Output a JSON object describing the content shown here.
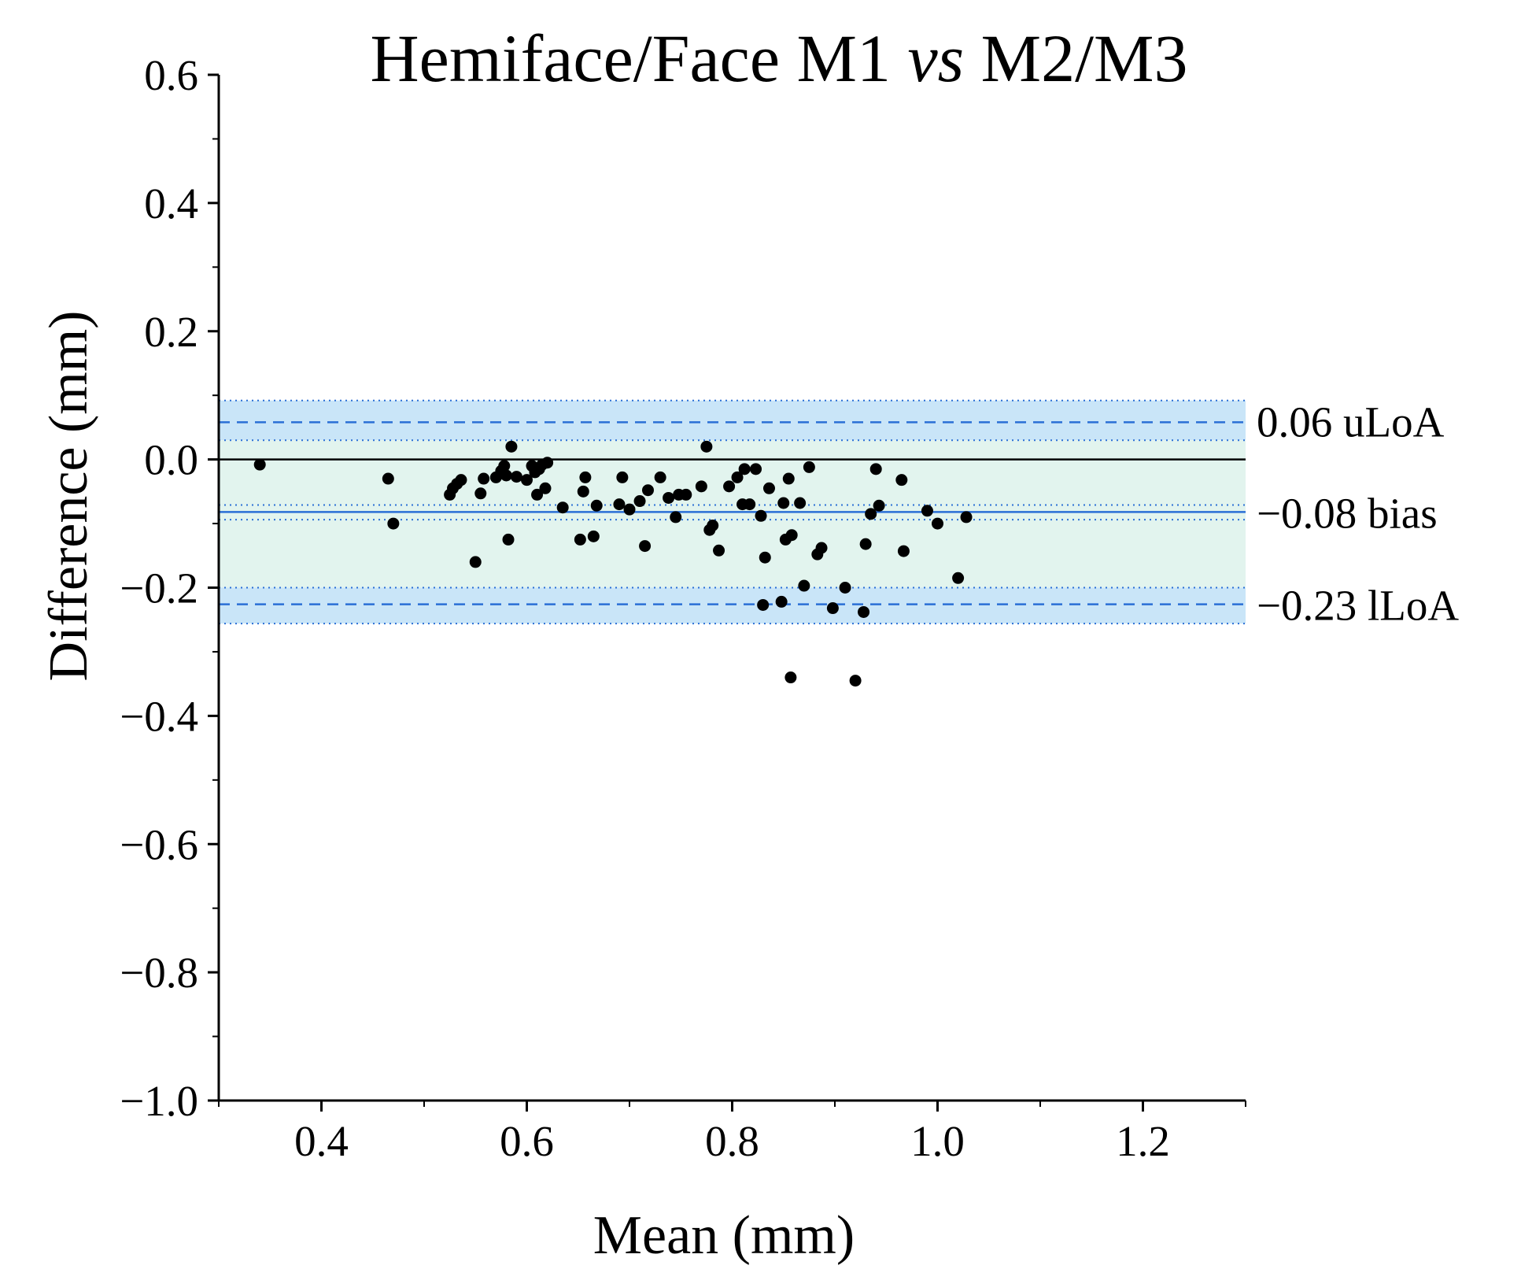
{
  "chart_data": {
    "type": "scatter",
    "subtype": "bland-altman",
    "title_main": "Hemiface/Face M1 ",
    "title_italic": "vs",
    "title_tail": " M2/M3",
    "xlabel": "Mean (mm)",
    "ylabel": "Difference (mm)",
    "xlim": [
      0.3,
      1.3
    ],
    "ylim": [
      -1.0,
      0.6
    ],
    "xticks": [
      0.4,
      0.6,
      0.8,
      1.0,
      1.2
    ],
    "xtick_labels": [
      "0.4",
      "0.6",
      "0.8",
      "1.0",
      "1.2"
    ],
    "yticks": [
      0.6,
      0.4,
      0.2,
      0.0,
      -0.2,
      -0.4,
      -0.6,
      -0.8,
      -1.0
    ],
    "ytick_labels": [
      "0.6",
      "0.4",
      "0.2",
      "0.0",
      "−0.2",
      "−0.4",
      "−0.6",
      "−0.8",
      "−1.0"
    ],
    "reference_lines": {
      "zero": 0.0,
      "bias": -0.082,
      "bias_ci": [
        -0.071,
        -0.094
      ],
      "upper_loa": 0.058,
      "upper_loa_ci": [
        0.092,
        0.03
      ],
      "lower_loa": -0.226,
      "lower_loa_ci": [
        -0.2,
        -0.256
      ]
    },
    "line_labels": {
      "upper": "0.06 uLoA",
      "bias": "−0.08 bias",
      "lower": "−0.23 lLoA"
    },
    "colors": {
      "points": "#000000",
      "lines": "#2a6fd6",
      "loa_band": "#bfe0f7",
      "inner_band": "#dff3ec",
      "zero_line": "#000000"
    },
    "points": [
      {
        "x": 0.34,
        "y": -0.008
      },
      {
        "x": 0.465,
        "y": -0.03
      },
      {
        "x": 0.47,
        "y": -0.1
      },
      {
        "x": 0.525,
        "y": -0.055
      },
      {
        "x": 0.528,
        "y": -0.045
      },
      {
        "x": 0.532,
        "y": -0.038
      },
      {
        "x": 0.536,
        "y": -0.032
      },
      {
        "x": 0.55,
        "y": -0.16
      },
      {
        "x": 0.555,
        "y": -0.053
      },
      {
        "x": 0.558,
        "y": -0.03
      },
      {
        "x": 0.57,
        "y": -0.028
      },
      {
        "x": 0.575,
        "y": -0.018
      },
      {
        "x": 0.578,
        "y": -0.01
      },
      {
        "x": 0.58,
        "y": -0.025
      },
      {
        "x": 0.582,
        "y": -0.125
      },
      {
        "x": 0.585,
        "y": 0.02
      },
      {
        "x": 0.59,
        "y": -0.027
      },
      {
        "x": 0.6,
        "y": -0.032
      },
      {
        "x": 0.605,
        "y": -0.01
      },
      {
        "x": 0.608,
        "y": -0.02
      },
      {
        "x": 0.61,
        "y": -0.055
      },
      {
        "x": 0.612,
        "y": -0.015
      },
      {
        "x": 0.615,
        "y": -0.008
      },
      {
        "x": 0.618,
        "y": -0.045
      },
      {
        "x": 0.62,
        "y": -0.005
      },
      {
        "x": 0.635,
        "y": -0.075
      },
      {
        "x": 0.652,
        "y": -0.125
      },
      {
        "x": 0.655,
        "y": -0.05
      },
      {
        "x": 0.657,
        "y": -0.028
      },
      {
        "x": 0.665,
        "y": -0.12
      },
      {
        "x": 0.668,
        "y": -0.072
      },
      {
        "x": 0.69,
        "y": -0.07
      },
      {
        "x": 0.693,
        "y": -0.028
      },
      {
        "x": 0.7,
        "y": -0.078
      },
      {
        "x": 0.71,
        "y": -0.065
      },
      {
        "x": 0.715,
        "y": -0.135
      },
      {
        "x": 0.718,
        "y": -0.048
      },
      {
        "x": 0.73,
        "y": -0.028
      },
      {
        "x": 0.738,
        "y": -0.06
      },
      {
        "x": 0.745,
        "y": -0.09
      },
      {
        "x": 0.748,
        "y": -0.055
      },
      {
        "x": 0.755,
        "y": -0.055
      },
      {
        "x": 0.77,
        "y": -0.042
      },
      {
        "x": 0.775,
        "y": 0.02
      },
      {
        "x": 0.778,
        "y": -0.11
      },
      {
        "x": 0.781,
        "y": -0.103
      },
      {
        "x": 0.787,
        "y": -0.142
      },
      {
        "x": 0.797,
        "y": -0.042
      },
      {
        "x": 0.805,
        "y": -0.028
      },
      {
        "x": 0.81,
        "y": -0.07
      },
      {
        "x": 0.812,
        "y": -0.015
      },
      {
        "x": 0.817,
        "y": -0.07
      },
      {
        "x": 0.823,
        "y": -0.015
      },
      {
        "x": 0.828,
        "y": -0.088
      },
      {
        "x": 0.83,
        "y": -0.227
      },
      {
        "x": 0.832,
        "y": -0.153
      },
      {
        "x": 0.836,
        "y": -0.045
      },
      {
        "x": 0.848,
        "y": -0.222
      },
      {
        "x": 0.85,
        "y": -0.068
      },
      {
        "x": 0.852,
        "y": -0.125
      },
      {
        "x": 0.855,
        "y": -0.03
      },
      {
        "x": 0.857,
        "y": -0.34
      },
      {
        "x": 0.858,
        "y": -0.118
      },
      {
        "x": 0.866,
        "y": -0.068
      },
      {
        "x": 0.87,
        "y": -0.197
      },
      {
        "x": 0.875,
        "y": -0.012
      },
      {
        "x": 0.883,
        "y": -0.148
      },
      {
        "x": 0.887,
        "y": -0.138
      },
      {
        "x": 0.898,
        "y": -0.232
      },
      {
        "x": 0.91,
        "y": -0.2
      },
      {
        "x": 0.92,
        "y": -0.345
      },
      {
        "x": 0.928,
        "y": -0.238
      },
      {
        "x": 0.93,
        "y": -0.132
      },
      {
        "x": 0.935,
        "y": -0.085
      },
      {
        "x": 0.94,
        "y": -0.015
      },
      {
        "x": 0.943,
        "y": -0.072
      },
      {
        "x": 0.965,
        "y": -0.032
      },
      {
        "x": 0.967,
        "y": -0.143
      },
      {
        "x": 0.99,
        "y": -0.08
      },
      {
        "x": 1.0,
        "y": -0.1
      },
      {
        "x": 1.02,
        "y": -0.185
      },
      {
        "x": 1.028,
        "y": -0.09
      }
    ]
  }
}
